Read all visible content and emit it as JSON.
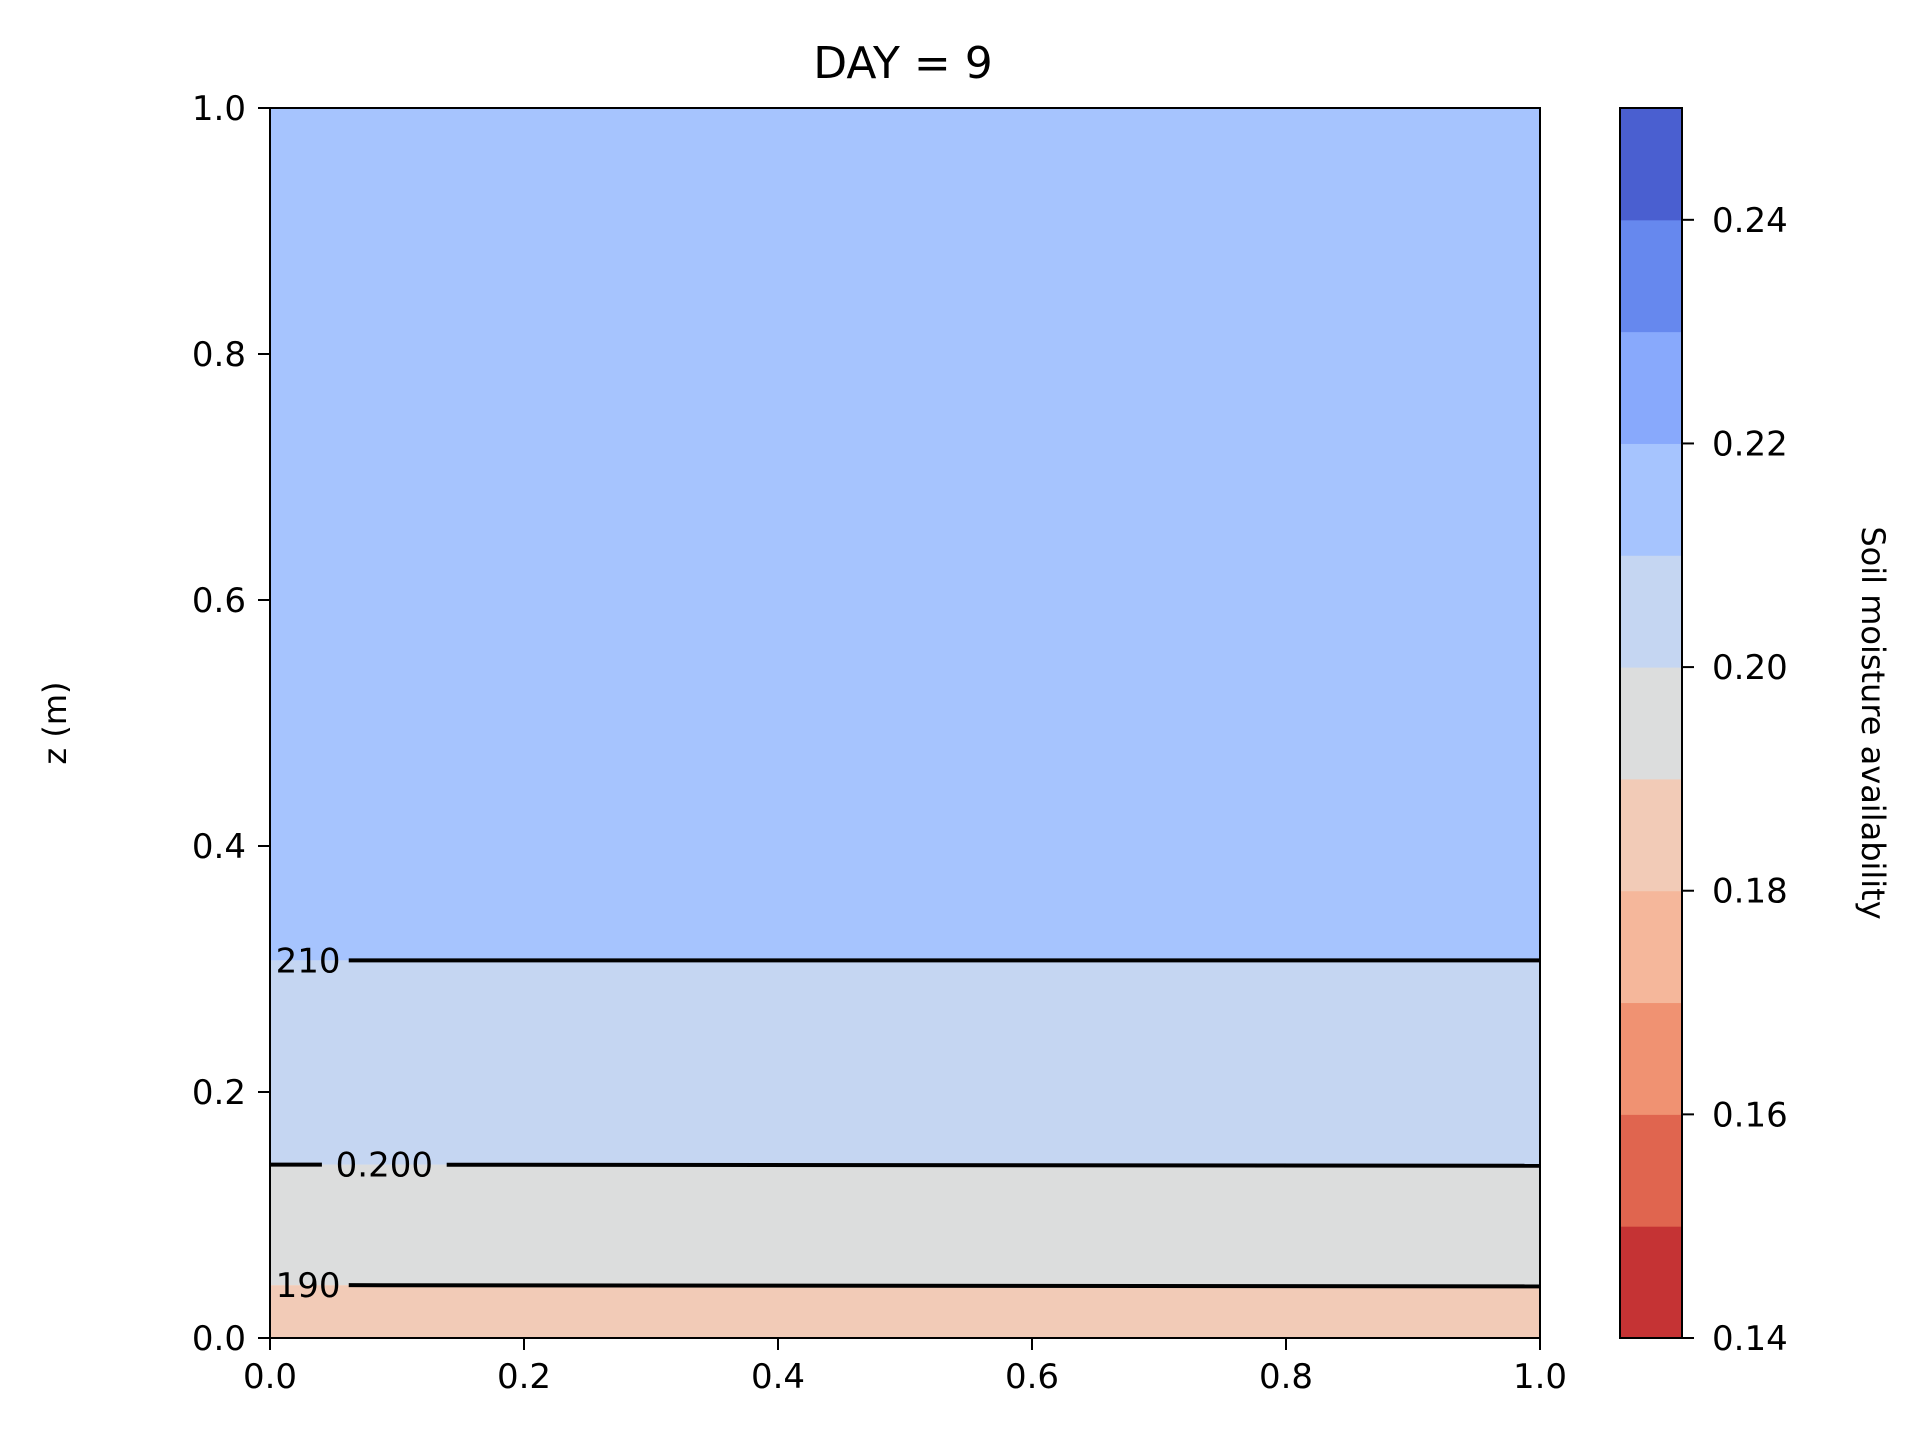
{
  "chart_data": {
    "type": "filled-contour",
    "title": "DAY = 9",
    "xlabel": "",
    "ylabel": "z (m)",
    "xlim": [
      0.0,
      1.0
    ],
    "ylim": [
      0.0,
      1.0
    ],
    "x_ticks": [
      0.0,
      0.2,
      0.4,
      0.6,
      0.8,
      1.0
    ],
    "x_tick_labels": [
      "0.0",
      "0.2",
      "0.4",
      "0.6",
      "0.8",
      "1.0"
    ],
    "y_ticks": [
      0.0,
      0.2,
      0.4,
      0.6,
      0.8,
      1.0
    ],
    "y_tick_labels": [
      "0.0",
      "0.2",
      "0.4",
      "0.6",
      "0.8",
      "1.0"
    ],
    "grid": false,
    "filled_bands": [
      {
        "z_from": 0.0,
        "z_to": 0.043,
        "value_range": [
          0.18,
          0.19
        ],
        "color": "#f2cbb7"
      },
      {
        "z_from": 0.043,
        "z_to": 0.141,
        "value_range": [
          0.19,
          0.2
        ],
        "color": "#dcdddd"
      },
      {
        "z_from": 0.141,
        "z_to": 0.307,
        "value_range": [
          0.2,
          0.21
        ],
        "color": "#c5d6f2"
      },
      {
        "z_from": 0.307,
        "z_to": 1.0,
        "value_range": [
          0.21,
          0.22
        ],
        "color": "#a6c4fe"
      }
    ],
    "contour_lines": [
      {
        "level": 0.19,
        "z": 0.043,
        "z_at_right": 0.042,
        "label": "190",
        "label_x": 0.03
      },
      {
        "level": 0.2,
        "z": 0.141,
        "z_at_right": 0.14,
        "label": "0.200",
        "label_x": 0.09
      },
      {
        "level": 0.21,
        "z": 0.307,
        "z_at_right": 0.307,
        "label": "210",
        "label_x": 0.03
      }
    ],
    "colorbar": {
      "label": "Soil moisture availability",
      "min": 0.14,
      "max": 0.25,
      "levels": [
        0.14,
        0.15,
        0.16,
        0.17,
        0.18,
        0.19,
        0.2,
        0.21,
        0.22,
        0.23,
        0.24,
        0.25
      ],
      "colors": [
        "#c53334",
        "#e0654f",
        "#f09272",
        "#f5b79b",
        "#f2cbb7",
        "#dcdddd",
        "#c5d6f2",
        "#a6c4fe",
        "#88a9fc",
        "#6688ee",
        "#4a5fd0"
      ],
      "ticks": [
        0.14,
        0.16,
        0.18,
        0.2,
        0.22,
        0.24
      ],
      "tick_labels": [
        "0.14",
        "0.16",
        "0.18",
        "0.20",
        "0.22",
        "0.24"
      ]
    }
  }
}
